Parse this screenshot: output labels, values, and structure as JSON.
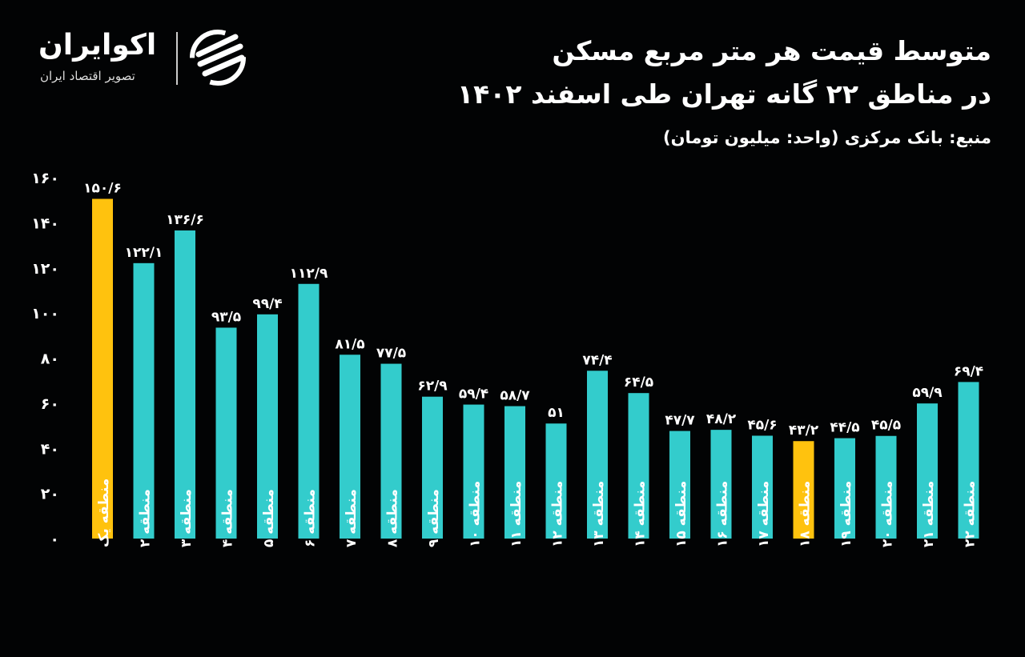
{
  "header": {
    "title_line1": "متوسط قیمت هر متر مربع مسکن",
    "title_line2": "در مناطق ۲۲ گانه تهران طی اسفند ۱۴۰۲",
    "source": "منبع: بانک مرکزی  (واحد: میلیون تومان)"
  },
  "logo": {
    "name": "اکوایران",
    "tagline": "تصویر اقتصاد ایران"
  },
  "colors": {
    "background": "#020304",
    "bar": "#33cccc",
    "highlight": "#ffc20e"
  },
  "chart_data": {
    "type": "bar",
    "ylim": [
      0,
      160
    ],
    "yticks": [
      0,
      20,
      40,
      60,
      80,
      100,
      120,
      140,
      160
    ],
    "ytick_labels": [
      "۰",
      "۲۰",
      "۴۰",
      "۶۰",
      "۸۰",
      "۱۰۰",
      "۱۲۰",
      "۱۴۰",
      "۱۶۰"
    ],
    "categories": [
      "منطقه یک",
      "منطقه ۲",
      "منطقه ۳",
      "منطقه ۴",
      "منطقه ۵",
      "منطقه ۶",
      "منطقه ۷",
      "منطقه ۸",
      "منطقه ۹",
      "منطقه ۱۰",
      "منطقه ۱۱",
      "منطقه ۱۲",
      "منطقه ۱۳",
      "منطقه ۱۴",
      "منطقه ۱۵",
      "منطقه ۱۶",
      "منطقه ۱۷",
      "منطقه ۱۸",
      "منطقه ۱۹",
      "منطقه ۲۰",
      "منطقه ۲۱",
      "منطقه ۲۲"
    ],
    "values": [
      150.6,
      122.1,
      136.6,
      93.5,
      99.4,
      112.9,
      81.5,
      77.5,
      62.9,
      59.4,
      58.7,
      51,
      74.4,
      64.5,
      47.7,
      48.2,
      45.6,
      43.2,
      44.5,
      45.5,
      59.9,
      69.4
    ],
    "data_labels": [
      "۱۵۰/۶",
      "۱۲۲/۱",
      "۱۳۶/۶",
      "۹۳/۵",
      "۹۹/۴",
      "۱۱۲/۹",
      "۸۱/۵",
      "۷۷/۵",
      "۶۲/۹",
      "۵۹/۴",
      "۵۸/۷",
      "۵۱",
      "۷۴/۴",
      "۶۴/۵",
      "۴۷/۷",
      "۴۸/۲",
      "۴۵/۶",
      "۴۳/۲",
      "۴۴/۵",
      "۴۵/۵",
      "۵۹/۹",
      "۶۹/۴"
    ],
    "highlighted": [
      "منطقه یک",
      "منطقه ۱۸"
    ],
    "grid": false,
    "legend": "none"
  }
}
